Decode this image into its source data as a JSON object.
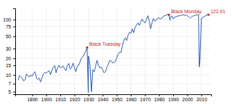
{
  "chart_data": {
    "type": "line",
    "x": [
      1880,
      1881,
      1882,
      1883,
      1884,
      1885,
      1886,
      1887,
      1888,
      1889,
      1890,
      1891,
      1892,
      1893,
      1894,
      1895,
      1896,
      1897,
      1898,
      1899,
      1900,
      1901,
      1902,
      1903,
      1904,
      1905,
      1906,
      1907,
      1908,
      1909,
      1910,
      1911,
      1912,
      1913,
      1914,
      1915,
      1916,
      1917,
      1918,
      1919,
      1920,
      1921,
      1922,
      1923,
      1924,
      1925,
      1926,
      1927,
      1928,
      1929,
      1929.8,
      1930,
      1931,
      1932,
      1933,
      1934,
      1935,
      1936,
      1937,
      1938,
      1939,
      1940,
      1941,
      1942,
      1943,
      1944,
      1945,
      1946,
      1947,
      1948,
      1949,
      1950,
      1951,
      1952,
      1953,
      1954,
      1955,
      1956,
      1957,
      1958,
      1959,
      1960,
      1961,
      1962,
      1963,
      1964,
      1965,
      1966,
      1967,
      1968,
      1969,
      1970,
      1971,
      1972,
      1973,
      1974,
      1975,
      1976,
      1977,
      1978,
      1979,
      1980,
      1981,
      1982,
      1983,
      1984,
      1985,
      1986,
      1987,
      1987.8,
      1988,
      1989,
      1990,
      1991,
      1992,
      1993,
      1994,
      1995,
      1996,
      1997,
      1998,
      1999,
      2000,
      2001,
      2002,
      2003,
      2004,
      2005,
      2006,
      2007,
      2008,
      2008.5,
      2009,
      2010,
      2011,
      2012,
      2013,
      2014,
      2015
    ],
    "values": [
      8.1,
      9.8,
      9.3,
      8.7,
      7.8,
      8.2,
      10.5,
      9.8,
      9.2,
      10.1,
      9.5,
      10.8,
      11.5,
      9.0,
      8.3,
      8.8,
      7.5,
      9.0,
      10.5,
      11.2,
      10.8,
      11.5,
      12.0,
      10.2,
      12.0,
      14.0,
      14.8,
      11.0,
      13.5,
      15.0,
      13.5,
      14.0,
      14.5,
      13.0,
      12.0,
      15.0,
      16.2,
      12.8,
      13.8,
      16.5,
      13.5,
      11.5,
      14.5,
      15.0,
      17.5,
      20.5,
      21.5,
      24.0,
      27.0,
      31.5,
      4.8,
      22.0,
      15.5,
      5.0,
      12.5,
      11.5,
      14.5,
      18.5,
      15.0,
      13.5,
      14.0,
      12.5,
      11.0,
      11.5,
      14.0,
      15.5,
      18.5,
      18.0,
      16.5,
      17.0,
      17.5,
      20.5,
      24.0,
      26.0,
      25.5,
      34.0,
      42.0,
      47.0,
      42.0,
      52.0,
      59.0,
      57.0,
      68.0,
      58.0,
      72.0,
      80.0,
      87.0,
      79.0,
      92.0,
      103.0,
      92.0,
      87.0,
      99.0,
      118.0,
      97.0,
      68.0,
      88.0,
      105.0,
      94.0,
      97.0,
      106.0,
      107.0,
      103.0,
      105.0,
      115.0,
      118.0,
      120.0,
      125.0,
      122.0,
      97.0,
      110.0,
      117.0,
      103.0,
      110.0,
      113.0,
      116.0,
      117.0,
      118.0,
      120.0,
      122.0,
      120.0,
      121.0,
      118.0,
      113.0,
      107.0,
      112.0,
      116.0,
      118.0,
      120.0,
      122.0,
      122.5,
      14.0,
      18.0,
      105.0,
      110.0,
      113.0,
      118.0,
      122.0,
      122.91
    ],
    "color": "#2255aa",
    "log": "y",
    "grid": true,
    "xlim": [
      1878,
      2017
    ],
    "xticks": [
      1890,
      1900,
      1910,
      1920,
      1930,
      1940,
      1950,
      1960,
      1970,
      1980,
      1990,
      2000,
      2010
    ],
    "ylim": [
      4.5,
      160
    ],
    "yticks": [
      5,
      7,
      10,
      15,
      20,
      30,
      50,
      75,
      100
    ],
    "annotations": [
      {
        "text": "122.91",
        "x": 2015,
        "y": 122.91,
        "color": "#cc2222"
      },
      {
        "text": "Black Tuesday",
        "x": 1929,
        "y": 31.5,
        "color": "#cc2222"
      },
      {
        "text": "Black Monday",
        "x": 1987,
        "y": 122.0,
        "color": "#cc2222"
      }
    ]
  }
}
